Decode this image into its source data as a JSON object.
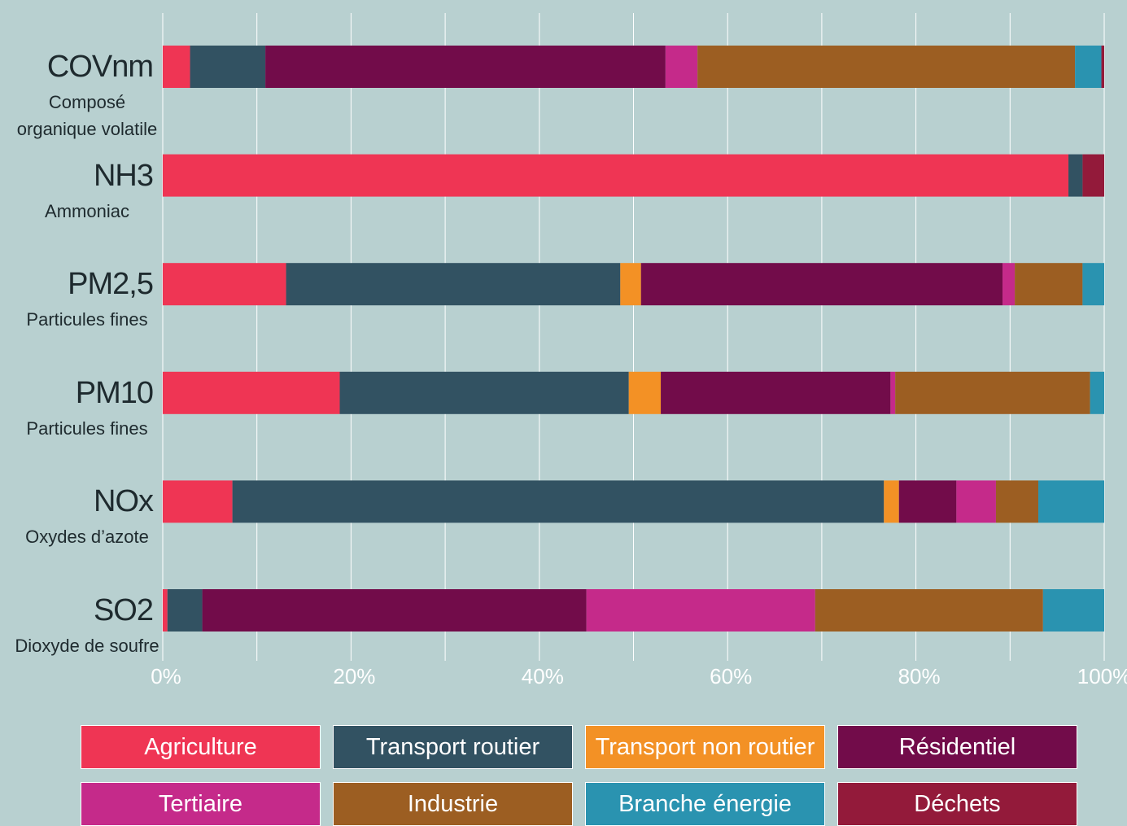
{
  "chart_data": {
    "type": "stacked-bar-horizontal",
    "categories": [
      "COVnm",
      "NH3",
      "PM2,5",
      "PM10",
      "NOx",
      "SO2"
    ],
    "category_descriptions": [
      "Composé organique volatile",
      "Ammoniac",
      "Particules fines",
      "Particules fines",
      "Oxydes d’azote",
      "Dioxyde de soufre"
    ],
    "series": [
      {
        "name": "Agriculture",
        "color": "#ef3554",
        "values": [
          2.9,
          96.2,
          13.1,
          18.8,
          7.4,
          0.5
        ]
      },
      {
        "name": "Transport routier",
        "color": "#325262",
        "values": [
          8.0,
          1.5,
          35.5,
          30.7,
          69.2,
          3.7
        ]
      },
      {
        "name": "Transport non routier",
        "color": "#f39125",
        "values": [
          0,
          0,
          2.2,
          3.4,
          1.6,
          0
        ]
      },
      {
        "name": "Résidentiel",
        "color": "#720c4a",
        "values": [
          42.5,
          0,
          38.4,
          24.4,
          6.1,
          40.8
        ]
      },
      {
        "name": "Tertiaire",
        "color": "#c52a8a",
        "values": [
          3.4,
          0,
          1.3,
          0.5,
          4.2,
          24.3
        ]
      },
      {
        "name": "Industrie",
        "color": "#9c5e22",
        "values": [
          40.1,
          0,
          7.2,
          20.7,
          4.5,
          24.2
        ]
      },
      {
        "name": "Branche énergie",
        "color": "#2a93b0",
        "values": [
          2.8,
          0,
          2.3,
          1.5,
          7.0,
          6.5
        ]
      },
      {
        "name": "Déchets",
        "color": "#931a3a",
        "values": [
          0.3,
          2.3,
          0,
          0,
          0,
          0
        ]
      }
    ],
    "xlim": [
      0,
      100
    ],
    "xticks": [
      {
        "value": 0,
        "label": "0%"
      },
      {
        "value": 20,
        "label": "20%"
      },
      {
        "value": 40,
        "label": "40%"
      },
      {
        "value": 60,
        "label": "60%"
      },
      {
        "value": 80,
        "label": "80%"
      },
      {
        "value": 100,
        "label": "100%"
      }
    ],
    "minor_xticks": [
      10,
      30,
      50,
      70,
      90
    ],
    "grid": true
  }
}
